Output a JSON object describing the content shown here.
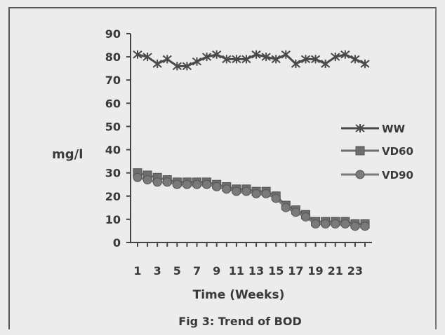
{
  "chart_data": {
    "type": "line",
    "title": "",
    "caption": "Fig 3: Trend of BOD",
    "xlabel": "Time (Weeks)",
    "ylabel": "mg/l",
    "ylim": [
      0,
      90
    ],
    "yticks": [
      0,
      10,
      20,
      30,
      40,
      50,
      60,
      70,
      80,
      90
    ],
    "x": [
      1,
      2,
      3,
      4,
      5,
      6,
      7,
      8,
      9,
      10,
      11,
      12,
      13,
      14,
      15,
      16,
      17,
      18,
      19,
      20,
      21,
      22,
      23,
      24
    ],
    "xtick_labels": [
      "1",
      "3",
      "5",
      "7",
      "9",
      "11",
      "13",
      "15",
      "17",
      "19",
      "21",
      "23"
    ],
    "xtick_values": [
      1,
      3,
      5,
      7,
      9,
      11,
      13,
      15,
      17,
      19,
      21,
      23
    ],
    "legend_position": "right",
    "grid": false,
    "series": [
      {
        "name": "WW",
        "marker": "asterisk",
        "color": "#4a4a4a",
        "values": [
          81,
          80,
          77,
          79,
          76,
          76,
          78,
          80,
          81,
          79,
          79,
          79,
          81,
          80,
          79,
          81,
          77,
          79,
          79,
          77,
          80,
          81,
          79,
          77
        ]
      },
      {
        "name": "VD60",
        "marker": "square",
        "color": "#6e6e6e",
        "values": [
          30,
          29,
          28,
          27,
          26,
          26,
          26,
          26,
          25,
          24,
          23,
          23,
          22,
          22,
          20,
          16,
          14,
          12,
          9,
          9,
          9,
          9,
          8,
          8
        ]
      },
      {
        "name": "VD90",
        "marker": "circle",
        "color": "#7a7a7a",
        "values": [
          28,
          27,
          26,
          26,
          25,
          25,
          25,
          25,
          24,
          23,
          22,
          22,
          21,
          21,
          19,
          15,
          13,
          11,
          8,
          8,
          8,
          8,
          7,
          7
        ]
      }
    ]
  }
}
